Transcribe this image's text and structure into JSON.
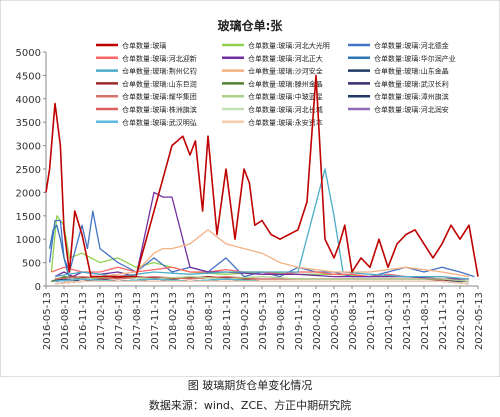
{
  "chart_data": {
    "type": "line",
    "title": "玻璃仓单:张",
    "xlabel": "",
    "ylabel": "",
    "ylim": [
      0,
      5000
    ],
    "yticks": [
      0,
      500,
      1000,
      1500,
      2000,
      2500,
      3000,
      3500,
      4000,
      4500,
      5000
    ],
    "xticks": [
      "2016-05-13",
      "2016-08-13",
      "2016-11-13",
      "2017-02-13",
      "2017-05-13",
      "2017-08-13",
      "2017-11-13",
      "2018-02-13",
      "2018-05-13",
      "2018-08-13",
      "2018-11-13",
      "2019-02-13",
      "2019-05-13",
      "2019-08-13",
      "2019-11-13",
      "2020-02-13",
      "2020-05-13",
      "2020-08-13",
      "2020-11-13",
      "2021-02-13",
      "2021-05-13",
      "2021-08-13",
      "2021-11-13",
      "2022-02-13",
      "2022-05-13"
    ],
    "grid": false,
    "legend_position": "top",
    "series": [
      {
        "name": "仓单数量:玻璃",
        "color": "#c00000",
        "x": [
          0.0,
          0.2,
          0.5,
          0.8,
          1.0,
          1.3,
          1.6,
          2.0,
          2.5,
          3.0,
          4.0,
          5.0,
          6.0,
          7.0,
          7.6,
          8.0,
          8.3,
          8.7,
          9.0,
          9.5,
          10.0,
          10.5,
          11.0,
          11.3,
          11.6,
          12.0,
          12.5,
          13.0,
          13.5,
          14.0,
          14.5,
          15.0,
          15.5,
          16.0,
          16.3,
          16.6,
          17.0,
          17.5,
          18.0,
          18.5,
          19.0,
          19.5,
          20.0,
          20.5,
          21.0,
          21.5,
          22.0,
          22.5,
          23.0,
          23.5,
          24.0
        ],
        "y": [
          2000,
          2500,
          3900,
          3000,
          1200,
          300,
          1600,
          1100,
          200,
          200,
          200,
          200,
          1600,
          3000,
          3200,
          2800,
          3100,
          1600,
          3200,
          1100,
          2500,
          1000,
          2500,
          2200,
          1300,
          1400,
          1100,
          1000,
          1100,
          1200,
          1800,
          4500,
          1000,
          600,
          900,
          1300,
          300,
          600,
          400,
          1000,
          400,
          900,
          1100,
          1200,
          900,
          600,
          900,
          1300,
          1000,
          1300,
          200
        ]
      },
      {
        "name": "仓单数量:玻璃:河北大光明",
        "color": "#92d050",
        "x": [
          0.3,
          0.6,
          1.0,
          1.3,
          2.0,
          3.0,
          4.0,
          5.0,
          6.0,
          8.0,
          10.0,
          12.0,
          14.0,
          16.0,
          18.0,
          20.0,
          22.0,
          23.5
        ],
        "y": [
          300,
          1500,
          1300,
          600,
          700,
          500,
          600,
          400,
          500,
          300,
          250,
          300,
          250,
          250,
          200,
          200,
          150,
          150
        ]
      },
      {
        "name": "仓单数量:玻璃:河北德金",
        "color": "#4472c4",
        "x": [
          0.2,
          0.5,
          0.8,
          1.0,
          1.3,
          2.0,
          2.3,
          2.6,
          3.0,
          4.0,
          5.0,
          6.0,
          7.0,
          8.0,
          9.0,
          10.0,
          11.0,
          12.0,
          13.0,
          14.0,
          15.0,
          16.0,
          17.0,
          18.0,
          19.0,
          20.0,
          21.0,
          22.0,
          23.0,
          23.8
        ],
        "y": [
          500,
          1400,
          1400,
          600,
          300,
          1300,
          800,
          1600,
          800,
          500,
          300,
          600,
          300,
          400,
          300,
          600,
          200,
          300,
          200,
          400,
          300,
          300,
          200,
          200,
          300,
          400,
          300,
          400,
          300,
          200
        ]
      },
      {
        "name": "仓单数量:玻璃:河北迎新",
        "color": "#ff6666",
        "x": [
          0.3,
          1.0,
          2.0,
          3.0,
          4.0,
          5.0,
          6.0,
          7.0,
          8.0,
          9.0,
          10.0,
          11.0,
          12.0,
          13.0,
          14.0,
          15.0,
          16.0,
          17.0,
          18.0,
          19.0,
          20.0,
          21.0,
          22.0,
          23.0
        ],
        "y": [
          300,
          400,
          300,
          300,
          400,
          300,
          350,
          400,
          300,
          300,
          350,
          300,
          300,
          250,
          300,
          300,
          250,
          250,
          200,
          250,
          200,
          200,
          200,
          150
        ]
      },
      {
        "name": "仓单数量:玻璃:河北正大",
        "color": "#7030a0",
        "x": [
          0.5,
          1.0,
          1.5,
          2.0,
          3.0,
          4.0,
          5.0,
          6.0,
          6.5,
          7.0,
          8.0,
          9.0,
          10.0,
          12.0,
          14.0,
          16.0,
          18.0,
          20.0,
          22.0,
          23.5
        ],
        "y": [
          200,
          300,
          200,
          300,
          250,
          300,
          200,
          2000,
          1900,
          1900,
          400,
          300,
          300,
          250,
          250,
          200,
          200,
          200,
          150,
          150
        ]
      },
      {
        "name": "仓单数量:玻璃:华尔润产业",
        "color": "#2e75b6",
        "x": [
          0.2,
          0.4,
          0.6,
          0.8,
          1.0,
          1.2,
          1.4
        ],
        "y": [
          800,
          1200,
          1300,
          1000,
          600,
          300,
          100
        ]
      },
      {
        "name": "仓单数量:玻璃:荆州亿钧",
        "color": "#4bacc6",
        "x": [
          0.5,
          2.0,
          4.0,
          6.0,
          8.0,
          10.0,
          12.0,
          14.0,
          15.5,
          16.0,
          16.5,
          18.0,
          20.0,
          22.0,
          23.5
        ],
        "y": [
          200,
          300,
          200,
          300,
          250,
          300,
          300,
          300,
          2500,
          1500,
          300,
          250,
          200,
          200,
          150
        ]
      },
      {
        "name": "仓单数量:玻璃:沙河安全",
        "color": "#f4b183",
        "x": [
          1.0,
          3.0,
          5.0,
          6.0,
          6.5,
          7.0,
          8.0,
          9.0,
          10.0,
          11.0,
          12.0,
          13.0,
          14.0,
          16.0,
          18.0,
          20.0,
          22.0,
          23.5
        ],
        "y": [
          100,
          200,
          300,
          700,
          800,
          800,
          900,
          1200,
          900,
          800,
          700,
          500,
          400,
          300,
          300,
          400,
          300,
          200
        ]
      },
      {
        "name": "仓单数量:玻璃:山东金晶",
        "color": "#1f3864",
        "x": [
          0.3,
          1.0,
          2.0,
          3.0,
          4.0,
          6.0,
          8.0,
          10.0,
          12.0,
          14.0,
          16.0,
          18.0,
          20.0,
          22.0,
          23.5
        ],
        "y": [
          100,
          150,
          100,
          150,
          100,
          150,
          100,
          150,
          100,
          100,
          100,
          100,
          100,
          100,
          100
        ]
      },
      {
        "name": "仓单数量:玻璃:山东巨润",
        "color": "#9e2a2a",
        "x": [
          0.5,
          1.5,
          3.0,
          5.0,
          7.0,
          9.0,
          11.0,
          13.0,
          15.0,
          17.0,
          19.0,
          21.0,
          23.0
        ],
        "y": [
          150,
          200,
          150,
          200,
          150,
          200,
          150,
          150,
          150,
          150,
          150,
          150,
          100
        ]
      },
      {
        "name": "仓单数量:玻璃:滕州金晶",
        "color": "#548235",
        "x": [
          0.3,
          1.0,
          2.0,
          4.0,
          6.0,
          8.0,
          10.0,
          12.0,
          14.0,
          16.0,
          18.0,
          20.0,
          22.0,
          23.5
        ],
        "y": [
          100,
          200,
          150,
          100,
          150,
          100,
          150,
          100,
          100,
          100,
          100,
          100,
          100,
          100
        ]
      },
      {
        "name": "仓单数量:玻璃:武汉长利",
        "color": "#3a2c6d",
        "x": [
          0.5,
          2.0,
          4.0,
          6.0,
          8.0,
          10.0,
          12.0,
          14.0,
          16.0,
          18.0,
          20.0,
          22.0,
          23.5
        ],
        "y": [
          100,
          150,
          100,
          150,
          100,
          100,
          100,
          100,
          100,
          100,
          100,
          100,
          100
        ]
      },
      {
        "name": "仓单数量:玻璃:耀华集团",
        "color": "#d4726a",
        "x": [
          0.5,
          2.0,
          4.0,
          6.0,
          8.0,
          10.0,
          12.0,
          14.0,
          16.0,
          18.0,
          20.0,
          22.0,
          23.5
        ],
        "y": [
          150,
          200,
          150,
          200,
          150,
          200,
          150,
          150,
          150,
          150,
          150,
          150,
          100
        ]
      },
      {
        "name": "仓单数量:玻璃:中玻蓝星",
        "color": "#a9d18e",
        "x": [
          0.5,
          2.0,
          4.0,
          6.0,
          8.0,
          10.0,
          12.0,
          14.0,
          16.0,
          18.0,
          20.0,
          22.0,
          23.5
        ],
        "y": [
          100,
          150,
          200,
          150,
          200,
          150,
          200,
          150,
          150,
          150,
          150,
          150,
          100
        ]
      },
      {
        "name": "仓单数量:玻璃:漳州旗滨",
        "color": "#203864",
        "x": [
          0.5,
          2.0,
          4.0,
          6.0,
          8.0,
          10.0,
          12.0,
          14.0,
          16.0,
          18.0,
          20.0,
          22.0,
          23.5
        ],
        "y": [
          50,
          100,
          100,
          100,
          100,
          100,
          100,
          100,
          100,
          100,
          100,
          100,
          50
        ]
      },
      {
        "name": "仓单数量:玻璃:株洲旗滨",
        "color": "#e06060",
        "x": [
          0.5,
          2.0,
          4.0,
          6.0,
          8.0,
          10.0,
          12.0,
          14.0,
          16.0,
          18.0,
          20.0,
          22.0,
          23.5
        ],
        "y": [
          50,
          100,
          100,
          100,
          100,
          100,
          100,
          100,
          100,
          100,
          100,
          100,
          50
        ]
      },
      {
        "name": "仓单数量:玻璃:河北长城",
        "color": "#c5e0b4",
        "x": [
          0.5,
          2.0,
          4.0,
          6.0,
          8.0,
          10.0,
          12.0,
          14.0,
          16.0,
          18.0,
          20.0,
          22.0,
          23.5
        ],
        "y": [
          50,
          100,
          100,
          100,
          100,
          100,
          100,
          100,
          100,
          100,
          100,
          100,
          50
        ]
      },
      {
        "name": "仓单数量:玻璃:河北润安",
        "color": "#8e6ab8",
        "x": [
          0.5,
          2.0,
          4.0,
          6.0,
          8.0,
          10.0,
          12.0,
          14.0,
          16.0,
          18.0,
          20.0,
          22.0,
          23.5
        ],
        "y": [
          50,
          100,
          100,
          100,
          100,
          100,
          100,
          100,
          100,
          100,
          100,
          100,
          50
        ]
      },
      {
        "name": "仓单数量:玻璃:武汉明弘",
        "color": "#5bb8e0",
        "x": [
          0.5,
          2.0,
          4.0,
          6.0,
          8.0,
          10.0,
          12.0,
          14.0,
          16.0,
          18.0,
          20.0,
          22.0,
          23.5
        ],
        "y": [
          100,
          150,
          100,
          150,
          100,
          150,
          100,
          100,
          100,
          100,
          100,
          100,
          50
        ]
      },
      {
        "name": "仓单数量:玻璃:永安资本",
        "color": "#f8cbad",
        "x": [
          0.5,
          2.0,
          4.0,
          6.0,
          8.0,
          10.0,
          12.0,
          14.0,
          16.0,
          18.0,
          20.0,
          22.0,
          23.5
        ],
        "y": [
          50,
          100,
          100,
          100,
          100,
          100,
          100,
          100,
          100,
          100,
          100,
          100,
          50
        ]
      }
    ]
  },
  "captions": {
    "figure": "图    玻璃期货仓单变化情况",
    "source": "数据来源：wind、ZCE、方正中期研究院"
  }
}
